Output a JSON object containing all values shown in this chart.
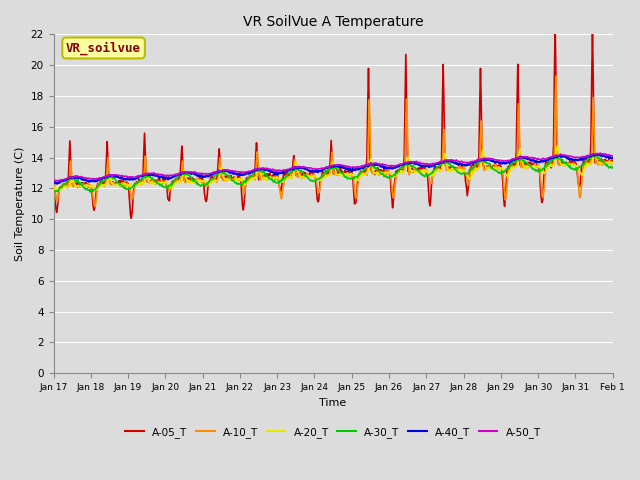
{
  "title": "VR SoilVue A Temperature",
  "xlabel": "Time",
  "ylabel": "Soil Temperature (C)",
  "ylim": [
    0,
    22
  ],
  "yticks": [
    0,
    2,
    4,
    6,
    8,
    10,
    12,
    14,
    16,
    18,
    20,
    22
  ],
  "bg_color": "#dcdcdc",
  "plot_bg_color": "#dcdcdc",
  "grid_color": "#ffffff",
  "series": [
    {
      "label": "A-05_T",
      "color": "#cc0000",
      "lw": 1.2
    },
    {
      "label": "A-10_T",
      "color": "#ff8c00",
      "lw": 1.2
    },
    {
      "label": "A-20_T",
      "color": "#e8e800",
      "lw": 1.2
    },
    {
      "label": "A-30_T",
      "color": "#00cc00",
      "lw": 1.2
    },
    {
      "label": "A-40_T",
      "color": "#0000e0",
      "lw": 1.6
    },
    {
      "label": "A-50_T",
      "color": "#cc00cc",
      "lw": 1.2
    }
  ],
  "xtick_labels": [
    "Jan 17",
    "Jan 18",
    "Jan 19",
    "Jan 20",
    "Jan 21",
    "Jan 22",
    "Jan 23",
    "Jan 24",
    "Jan 25",
    "Jan 26",
    "Jan 27",
    "Jan 28",
    "Jan 29",
    "Jan 30",
    "Jan 31",
    "Feb 1"
  ],
  "annotation_box": {
    "text": "VR_soilvue",
    "text_color": "#8b0000",
    "bg_color": "#ffffa0",
    "edge_color": "#bbbb00",
    "fontsize": 9
  }
}
